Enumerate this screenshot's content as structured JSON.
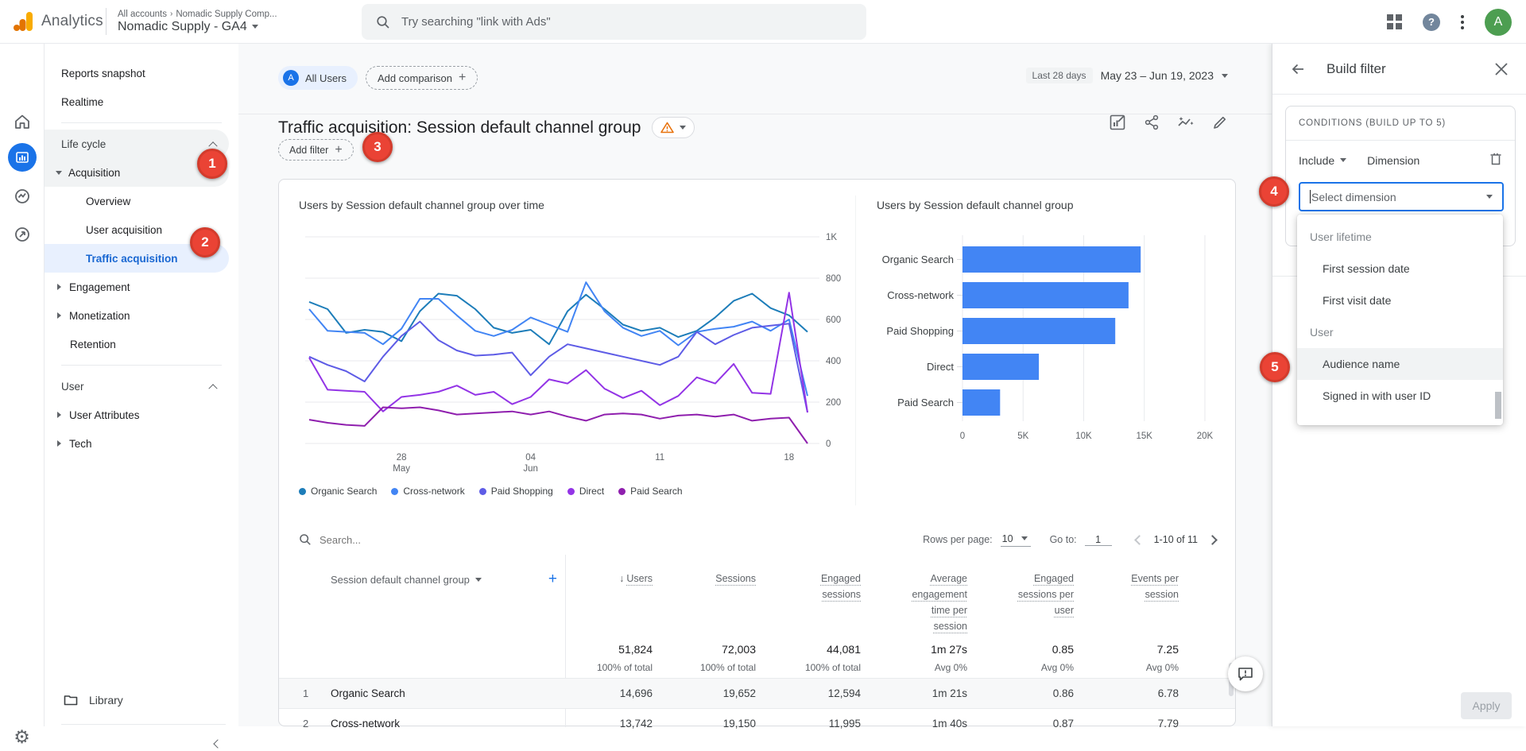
{
  "header": {
    "app_name": "Analytics",
    "breadcrumb": "All accounts",
    "breadcrumb_entity": "Nomadic Supply Comp...",
    "property_selector": "Nomadic Supply - GA4",
    "search_placeholder": "Try searching \"link with Ads\"",
    "avatar_letter": "A",
    "help_glyph": "?"
  },
  "nav": {
    "items": [
      {
        "kind": "link",
        "label": "Reports snapshot"
      },
      {
        "kind": "link",
        "label": "Realtime"
      },
      {
        "kind": "divider"
      },
      {
        "kind": "section",
        "label": "Life cycle",
        "highlight": true
      },
      {
        "kind": "parent-expanded",
        "label": "Acquisition",
        "highlight": true
      },
      {
        "kind": "child",
        "label": "Overview"
      },
      {
        "kind": "child",
        "label": "User acquisition"
      },
      {
        "kind": "child",
        "label": "Traffic acquisition",
        "selected": true
      },
      {
        "kind": "parent-collapsed",
        "label": "Engagement"
      },
      {
        "kind": "parent-collapsed",
        "label": "Monetization"
      },
      {
        "kind": "link-indent",
        "label": "Retention"
      },
      {
        "kind": "divider"
      },
      {
        "kind": "section",
        "label": "User"
      },
      {
        "kind": "parent-collapsed",
        "label": "User Attributes"
      },
      {
        "kind": "parent-collapsed",
        "label": "Tech"
      }
    ],
    "library_label": "Library"
  },
  "toolbar": {
    "comparison_chip": "All Users",
    "comparison_chip_initial": "A",
    "add_comparison_label": "Add comparison",
    "date_preset": "Last 28 days",
    "date_range": "May 23 – Jun 19, 2023"
  },
  "report": {
    "title": "Traffic acquisition: Session default channel group",
    "add_filter_label": "Add filter"
  },
  "step_badges": [
    "1",
    "2",
    "3",
    "4",
    "5"
  ],
  "chart_data": [
    {
      "type": "line",
      "title": "Users by Session default channel group over time",
      "x_start": "May 23, 2023",
      "x_end": "Jun 19, 2023",
      "x_tick_labels": [
        {
          "index": 5,
          "line1": "28",
          "line2": "May"
        },
        {
          "index": 12,
          "line1": "04",
          "line2": "Jun"
        },
        {
          "index": 19,
          "line1": "11"
        },
        {
          "index": 26,
          "line1": "18"
        }
      ],
      "ylim": [
        0,
        1000
      ],
      "y_ticks": [
        0,
        200,
        400,
        600,
        800,
        1000
      ],
      "y_tick_labels": [
        "0",
        "200",
        "400",
        "600",
        "800",
        "1K"
      ],
      "series": [
        {
          "name": "Organic Search",
          "color": "#1d7db9",
          "values": [
            685,
            650,
            535,
            550,
            540,
            495,
            640,
            725,
            715,
            650,
            560,
            535,
            550,
            480,
            640,
            720,
            650,
            575,
            545,
            560,
            515,
            545,
            610,
            690,
            725,
            655,
            620,
            540
          ]
        },
        {
          "name": "Cross-network",
          "color": "#4285f4",
          "values": [
            650,
            545,
            540,
            535,
            480,
            555,
            700,
            700,
            620,
            545,
            520,
            550,
            610,
            575,
            540,
            780,
            640,
            560,
            520,
            545,
            475,
            540,
            555,
            565,
            590,
            545,
            600,
            230
          ]
        },
        {
          "name": "Paid Shopping",
          "color": "#5e5ce6",
          "values": [
            420,
            380,
            350,
            300,
            420,
            520,
            590,
            500,
            450,
            425,
            430,
            440,
            330,
            420,
            480,
            460,
            440,
            420,
            400,
            380,
            420,
            540,
            480,
            525,
            560,
            570,
            580,
            150
          ]
        },
        {
          "name": "Direct",
          "color": "#9334e6",
          "values": [
            415,
            260,
            255,
            250,
            155,
            225,
            235,
            250,
            280,
            235,
            250,
            190,
            225,
            310,
            290,
            355,
            265,
            220,
            255,
            185,
            230,
            320,
            290,
            385,
            245,
            240,
            730,
            150
          ]
        },
        {
          "name": "Paid Search",
          "color": "#8f1fae",
          "values": [
            115,
            100,
            90,
            85,
            175,
            170,
            175,
            160,
            140,
            145,
            150,
            155,
            140,
            155,
            130,
            110,
            140,
            145,
            140,
            120,
            135,
            140,
            130,
            140,
            110,
            120,
            125,
            0
          ]
        }
      ]
    },
    {
      "type": "bar",
      "orientation": "horizontal",
      "title": "Users by Session default channel group",
      "categories": [
        "Organic Search",
        "Cross-network",
        "Paid Shopping",
        "Direct",
        "Paid Search"
      ],
      "values": [
        14700,
        13700,
        12600,
        6300,
        3100
      ],
      "xlim": [
        0,
        20000
      ],
      "x_ticks": [
        0,
        5000,
        10000,
        15000,
        20000
      ],
      "x_tick_labels": [
        "0",
        "5K",
        "10K",
        "15K",
        "20K"
      ],
      "bar_color": "#4285f4"
    }
  ],
  "table": {
    "search_placeholder": "Search...",
    "rows_per_page_label": "Rows per page:",
    "rows_per_page_value": "10",
    "go_to_label": "Go to:",
    "go_to_value": "1",
    "pagination_label": "1-10 of 11",
    "dimension_column": "Session default channel group",
    "metric_columns": [
      "Users",
      "Sessions",
      "Engaged sessions",
      "Average engagement time per session",
      "Engaged sessions per user",
      "Events per session"
    ],
    "totals": {
      "values": [
        "51,824",
        "72,003",
        "44,081",
        "1m 27s",
        "0.85",
        "7.25"
      ],
      "subtexts": [
        "100% of total",
        "100% of total",
        "100% of total",
        "Avg 0%",
        "Avg 0%",
        "Avg 0%"
      ]
    },
    "rows": [
      {
        "index": "1",
        "channel": "Organic Search",
        "values": [
          "14,696",
          "19,652",
          "12,594",
          "1m 21s",
          "0.86",
          "6.78"
        ],
        "highlighted": true
      },
      {
        "index": "2",
        "channel": "Cross-network",
        "values": [
          "13,742",
          "19,150",
          "11,995",
          "1m 40s",
          "0.87",
          "7.79"
        ],
        "highlighted": false
      }
    ]
  },
  "panel": {
    "title": "Build filter",
    "conditions_label": "CONDITIONS (BUILD UP TO 5)",
    "include_label": "Include",
    "dimension_label": "Dimension",
    "select_placeholder": "Select dimension",
    "dropdown_groups": [
      {
        "header": "User lifetime",
        "items": [
          {
            "label": "First session date",
            "highlighted": false
          },
          {
            "label": "First visit date",
            "highlighted": false
          }
        ]
      },
      {
        "header": "User",
        "items": [
          {
            "label": "Audience name",
            "highlighted": true
          },
          {
            "label": "Signed in with user ID",
            "highlighted": false
          }
        ]
      }
    ],
    "apply_label": "Apply"
  }
}
